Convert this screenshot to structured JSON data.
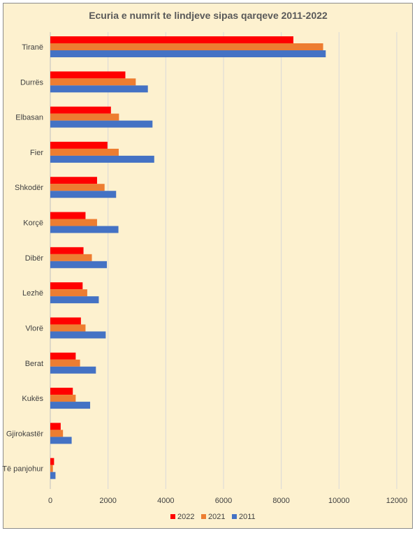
{
  "chart_data": {
    "type": "bar",
    "orientation": "horizontal",
    "title": "Ecuria e numrit te lindjeve sipas qarqeve 2011-2022",
    "categories": [
      "Tiranë",
      "Durrës",
      "Elbasan",
      "Fier",
      "Shkodër",
      "Korçë",
      "Dibër",
      "Lezhë",
      "Vlorë",
      "Berat",
      "Kukës",
      "Gjirokastër",
      "Të panjohur"
    ],
    "series": [
      {
        "name": "2022",
        "color": "#ff0000",
        "values": [
          8420,
          2600,
          2100,
          1980,
          1620,
          1220,
          1150,
          1120,
          1060,
          880,
          780,
          360,
          130
        ]
      },
      {
        "name": "2021",
        "color": "#ed7d31",
        "values": [
          9450,
          2960,
          2380,
          2370,
          1880,
          1620,
          1440,
          1280,
          1220,
          1030,
          880,
          440,
          90
        ]
      },
      {
        "name": "2011",
        "color": "#4472c4",
        "values": [
          9540,
          3380,
          3540,
          3600,
          2280,
          2360,
          1960,
          1680,
          1920,
          1580,
          1380,
          740,
          180
        ]
      }
    ],
    "xlim": [
      0,
      12000
    ],
    "xticks": [
      "0",
      "2000",
      "4000",
      "6000",
      "8000",
      "10000",
      "12000"
    ],
    "legend_position": "bottom",
    "grid": "vertical"
  }
}
